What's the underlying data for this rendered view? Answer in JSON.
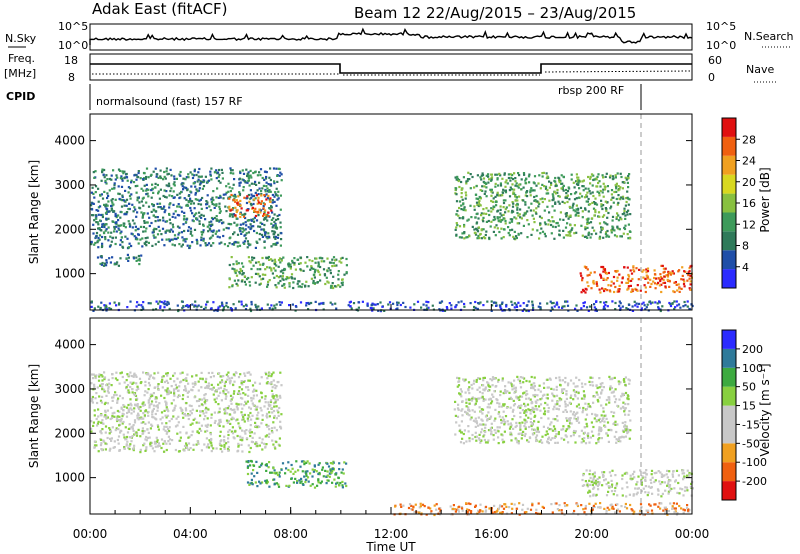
{
  "header": {
    "station": "Adak East (fitACF)",
    "beam_date": "Beam 12 22/Aug/2015 – 23/Aug/2015"
  },
  "top_panels": {
    "nsky_label": "N.Sky",
    "nsearch_label": "N.Search",
    "nsky_ticks": [
      "10^5",
      "10^0"
    ],
    "nsky_ticks_right": [
      "10^5",
      "10^0"
    ],
    "freq_label_1": "Freq.",
    "freq_label_2": "[MHz]",
    "freq_ticks": [
      "18",
      "8"
    ],
    "nave_label": "Nave",
    "nave_ticks": [
      "60",
      "0"
    ],
    "cpid_label": "CPID",
    "cpid_1": "normalsound (fast) 157 RF",
    "cpid_2": "rbsp 200 RF"
  },
  "chart_data": [
    {
      "type": "heatmap",
      "name": "power",
      "ylabel": "Slant Range [km]",
      "yticks": [
        "4000",
        "3000",
        "2000",
        "1000"
      ],
      "ylim": [
        180,
        4600
      ],
      "xlim_hours": [
        0,
        24
      ],
      "colorbar": {
        "label": "Power [dB]",
        "ticks": [
          "28",
          "24",
          "20",
          "16",
          "12",
          "8",
          "4"
        ],
        "colors": [
          "#2b2bff",
          "#1f4ea8",
          "#2f7a5a",
          "#3d9a5a",
          "#88c040",
          "#d8d820",
          "#f0a020",
          "#f06010",
          "#e01010"
        ]
      },
      "regions": [
        {
          "t": [
            0.0,
            7.6
          ],
          "r": [
            1600,
            3400
          ],
          "level": 2
        },
        {
          "t": [
            5.5,
            7.2
          ],
          "r": [
            2300,
            2800
          ],
          "level": 7
        },
        {
          "t": [
            0.2,
            2.0
          ],
          "r": [
            1200,
            1450
          ],
          "level": 2
        },
        {
          "t": [
            5.5,
            10.2
          ],
          "r": [
            700,
            1400
          ],
          "level": 3
        },
        {
          "t": [
            14.5,
            21.5
          ],
          "r": [
            1800,
            3300
          ],
          "level": 3
        },
        {
          "t": [
            19.5,
            24.0
          ],
          "r": [
            600,
            1200
          ],
          "level": 7
        },
        {
          "t": [
            0.0,
            24.0
          ],
          "r": [
            180,
            400
          ],
          "level": 1
        }
      ]
    },
    {
      "type": "heatmap",
      "name": "velocity",
      "ylabel": "Slant Range [km]",
      "yticks": [
        "4000",
        "3000",
        "2000",
        "1000"
      ],
      "ylim": [
        180,
        4600
      ],
      "xlim_hours": [
        0,
        24
      ],
      "colorbar": {
        "label": "Velocity [m s⁻¹]",
        "ticks": [
          "200",
          "100",
          "50",
          "15",
          "-15",
          "-50",
          "-100",
          "-200"
        ],
        "colors": [
          "#e01010",
          "#f06010",
          "#f0a020",
          "#c8c8c8",
          "#c8c8c8",
          "#88d040",
          "#3daa40",
          "#2f7a9a",
          "#2b2bff"
        ]
      },
      "regions": [
        {
          "t": [
            0.0,
            7.6
          ],
          "r": [
            1600,
            3400
          ],
          "level": 4
        },
        {
          "t": [
            6.2,
            10.2
          ],
          "r": [
            800,
            1400
          ],
          "level": 6
        },
        {
          "t": [
            14.5,
            21.5
          ],
          "r": [
            1800,
            3300
          ],
          "level": 4
        },
        {
          "t": [
            19.5,
            24.0
          ],
          "r": [
            600,
            1200
          ],
          "level": 4
        },
        {
          "t": [
            12.0,
            24.0
          ],
          "r": [
            180,
            450
          ],
          "level": 2
        }
      ]
    }
  ],
  "x_axis": {
    "ticks": [
      "00:00",
      "04:00",
      "08:00",
      "12:00",
      "16:00",
      "20:00",
      "00:00"
    ],
    "label": "Time UT"
  }
}
